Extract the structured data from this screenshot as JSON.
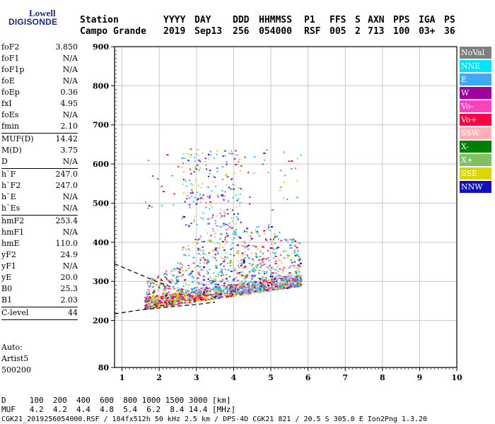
{
  "logo": {
    "top": "Lowell",
    "bottom": "DIGISONDE"
  },
  "header": {
    "labels": [
      "Station",
      "YYYY",
      "DAY",
      "DDD",
      "HHMMSS",
      "P1",
      "FFS",
      "S",
      "AXN",
      "PPS",
      "IGA",
      "PS"
    ],
    "values": [
      "Campo Grande",
      "2019",
      "Sep13",
      "256",
      "054000",
      "RSF",
      "005",
      "2",
      "713",
      "100",
      "03+",
      "36"
    ]
  },
  "params": {
    "group1": [
      {
        "label": "foF2",
        "value": "3.850"
      },
      {
        "label": "foF1",
        "value": "N/A"
      },
      {
        "label": "foF1p",
        "value": "N/A"
      },
      {
        "label": "foE",
        "value": "N/A"
      },
      {
        "label": "foEp",
        "value": "0.36"
      },
      {
        "label": "fxI",
        "value": "4.95"
      },
      {
        "label": "foEs",
        "value": "N/A"
      },
      {
        "label": "fmin",
        "value": "2.10"
      }
    ],
    "group2": [
      {
        "label": "MUF(D)",
        "value": "14.42"
      },
      {
        "label": "M(D)",
        "value": "3.75"
      },
      {
        "label": "D",
        "value": "N/A"
      }
    ],
    "group3": [
      {
        "label": "h`F",
        "value": "247.0"
      },
      {
        "label": "h`F2",
        "value": "247.0"
      },
      {
        "label": "h`E",
        "value": "N/A"
      },
      {
        "label": "h`Es",
        "value": "N/A"
      }
    ],
    "group4": [
      {
        "label": "hmF2",
        "value": "253.4"
      },
      {
        "label": "hmF1",
        "value": "N/A"
      },
      {
        "label": "hmE",
        "value": "110.0"
      },
      {
        "label": "yF2",
        "value": "24.9"
      },
      {
        "label": "yF1",
        "value": "N/A"
      },
      {
        "label": "yE",
        "value": "20.0"
      },
      {
        "label": "B0",
        "value": "25.3"
      },
      {
        "label": "B1",
        "value": "2.03"
      }
    ],
    "group5": [
      {
        "label": "C-level",
        "value": "44"
      }
    ]
  },
  "auto": {
    "line1": "Auto:",
    "line2": "Artist5",
    "line3": "500200"
  },
  "legend": [
    {
      "label": "NoVal",
      "color": "#7f7f7f"
    },
    {
      "label": "NNE",
      "color": "#00e5ff"
    },
    {
      "label": "E",
      "color": "#3fa9f5"
    },
    {
      "label": "W",
      "color": "#a000a0"
    },
    {
      "label": "Vo-",
      "color": "#ff40c0"
    },
    {
      "label": "Vo+",
      "color": "#ff0040"
    },
    {
      "label": "SSW",
      "color": "#ffb0b8"
    },
    {
      "label": "X-",
      "color": "#008000"
    },
    {
      "label": "X+",
      "color": "#80c060"
    },
    {
      "label": "SSE",
      "color": "#d8d800"
    },
    {
      "label": "NNW",
      "color": "#1010c0"
    }
  ],
  "footer": {
    "line1": "D     100  200  400  600  800 1000 1500 3000 [km]",
    "line2": "MUF   4.2  4.2  4.4  4.8  5.4  6.2  8.4 14.4 [MHz]",
    "line3": "CGK21_2019256054000.RSF / 184fx512h 50 kHz 2.5 km / DPS-4D CGK21 821 / 20.5 S 305.0 E Ion2Png 1.3.20"
  },
  "chart_data": {
    "type": "scatter",
    "xlim": [
      0.8,
      10
    ],
    "ylim": [
      80,
      900
    ],
    "xticks": [
      "1",
      "2",
      "3",
      "4",
      "5",
      "6",
      "7",
      "8",
      "9",
      "10"
    ],
    "yticks": [
      "80",
      "200",
      "300",
      "400",
      "500",
      "600",
      "700",
      "800",
      "900"
    ],
    "grid": true,
    "trace_lower": {
      "x": [
        0.8,
        1.5,
        2.0,
        2.5,
        3.0,
        3.5
      ],
      "y": [
        217,
        227,
        232,
        237,
        241,
        247
      ]
    },
    "trace_upper": {
      "x": [
        0.8,
        1.5,
        2.0,
        2.3
      ],
      "y": [
        345,
        317,
        297,
        286
      ]
    }
  }
}
